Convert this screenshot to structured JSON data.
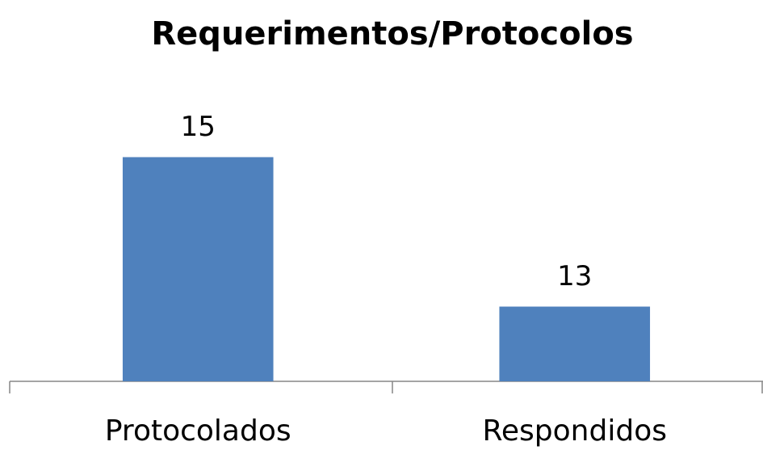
{
  "chart_data": {
    "type": "bar",
    "title": "Requerimentos/Protocolos",
    "categories": [
      "Protocolados",
      "Respondidos"
    ],
    "values": [
      15,
      13
    ],
    "color": "#4f81bd",
    "ylim": [
      12,
      16
    ],
    "grid": false
  }
}
